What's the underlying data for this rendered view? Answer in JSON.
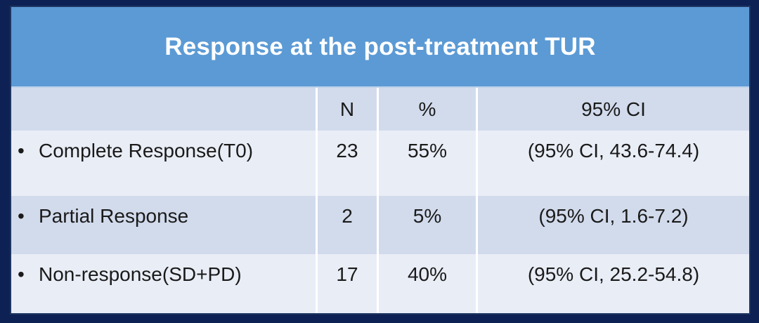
{
  "title": "Response at the post-treatment TUR",
  "bullet": "•",
  "table": {
    "headers": {
      "label": "",
      "n": "N",
      "pct": "%",
      "ci": "95% CI"
    },
    "rows": [
      {
        "label": "Complete Response(T0)",
        "n": "23",
        "pct": "55%",
        "ci": "(95% CI, 43.6-74.4)"
      },
      {
        "label": "Partial Response",
        "n": "2",
        "pct": "5%",
        "ci": "(95% CI, 1.6-7.2)"
      },
      {
        "label": "Non-response(SD+PD)",
        "n": "17",
        "pct": "40%",
        "ci": "(95% CI, 25.2-54.8)"
      }
    ]
  },
  "colors": {
    "frame_navy": "#0d2154",
    "inner_border": "#1e3560",
    "title_band_blue": "#5b9ad5",
    "band_dark": "#d2dbec",
    "band_light": "#e9edf6",
    "separator": "#ffffff",
    "title_text": "#ffffff",
    "body_text": "#1a1a1a"
  },
  "chart_data": {
    "type": "table",
    "title": "Response at the post-treatment TUR",
    "columns": [
      "",
      "N",
      "%",
      "95% CI"
    ],
    "rows": [
      [
        "Complete Response(T0)",
        23,
        "55%",
        "(95% CI, 43.6-74.4)"
      ],
      [
        "Partial Response",
        2,
        "5%",
        "(95% CI, 1.6-7.2)"
      ],
      [
        "Non-response(SD+PD)",
        17,
        "40%",
        "(95% CI, 25.2-54.8)"
      ]
    ],
    "notes": "N values: 23 (55%), 2 (5%), 17 (40%); banded rows, header band and row 2 share darker blue-gray, rows 1 and 3 lighter"
  }
}
